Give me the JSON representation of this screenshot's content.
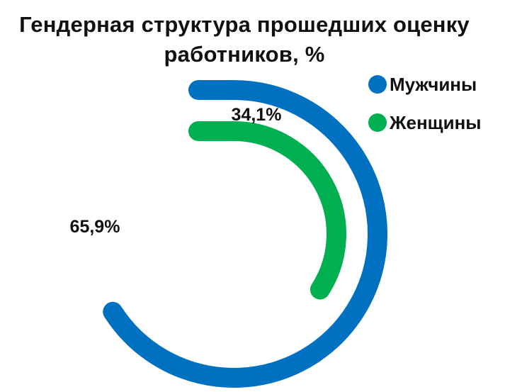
{
  "chart_data": {
    "type": "pie",
    "style": "concentric-arc-donut",
    "title": "Гендерная структура прошедших оценку\nработников, %",
    "series": [
      {
        "name": "Мужчины",
        "value": 65.9,
        "label": "65,9%",
        "color": "#0070C0"
      },
      {
        "name": "Женщины",
        "value": 34.1,
        "label": "34,1%",
        "color": "#00B050"
      }
    ],
    "legend": "top-right"
  }
}
